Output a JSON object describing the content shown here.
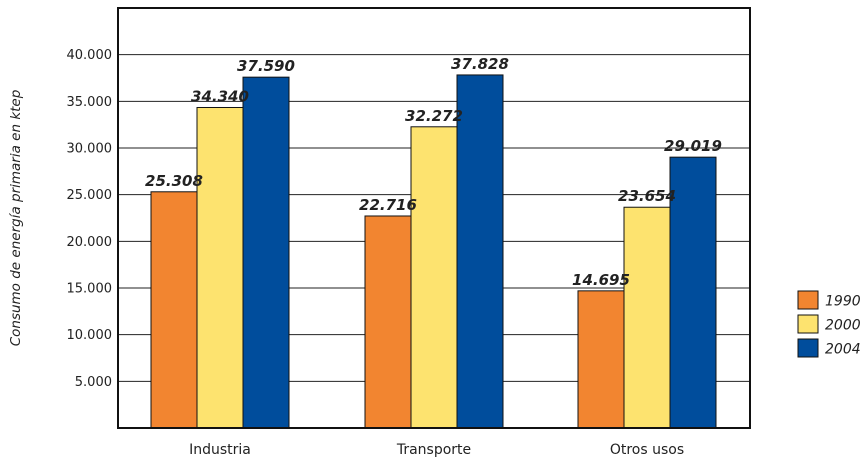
{
  "chart_data": {
    "type": "bar",
    "title": "",
    "xlabel": "",
    "ylabel": "Consumo de energía primaria en ktep",
    "categories": [
      "Industria",
      "Transporte",
      "Otros usos"
    ],
    "series": [
      {
        "name": "1990",
        "color": "#f28530",
        "values": [
          25308,
          22716,
          14695
        ],
        "labels": [
          "25.308",
          "22.716",
          "14.695"
        ]
      },
      {
        "name": "2000",
        "color": "#fde36f",
        "values": [
          34340,
          32272,
          23654
        ],
        "labels": [
          "34.340",
          "32.272",
          "23.654"
        ]
      },
      {
        "name": "2004",
        "color": "#004d9c",
        "values": [
          37590,
          37828,
          29019
        ],
        "labels": [
          "37.590",
          "37.828",
          "29.019"
        ]
      }
    ],
    "ylim": [
      0,
      45000
    ],
    "yticks": [
      5000,
      10000,
      15000,
      20000,
      25000,
      30000,
      35000,
      40000
    ],
    "ytick_labels": [
      "5.000",
      "10.000",
      "15.000",
      "20.000",
      "25.000",
      "30.000",
      "35.000",
      "40.000"
    ],
    "grid": true,
    "legend_position": "right"
  }
}
